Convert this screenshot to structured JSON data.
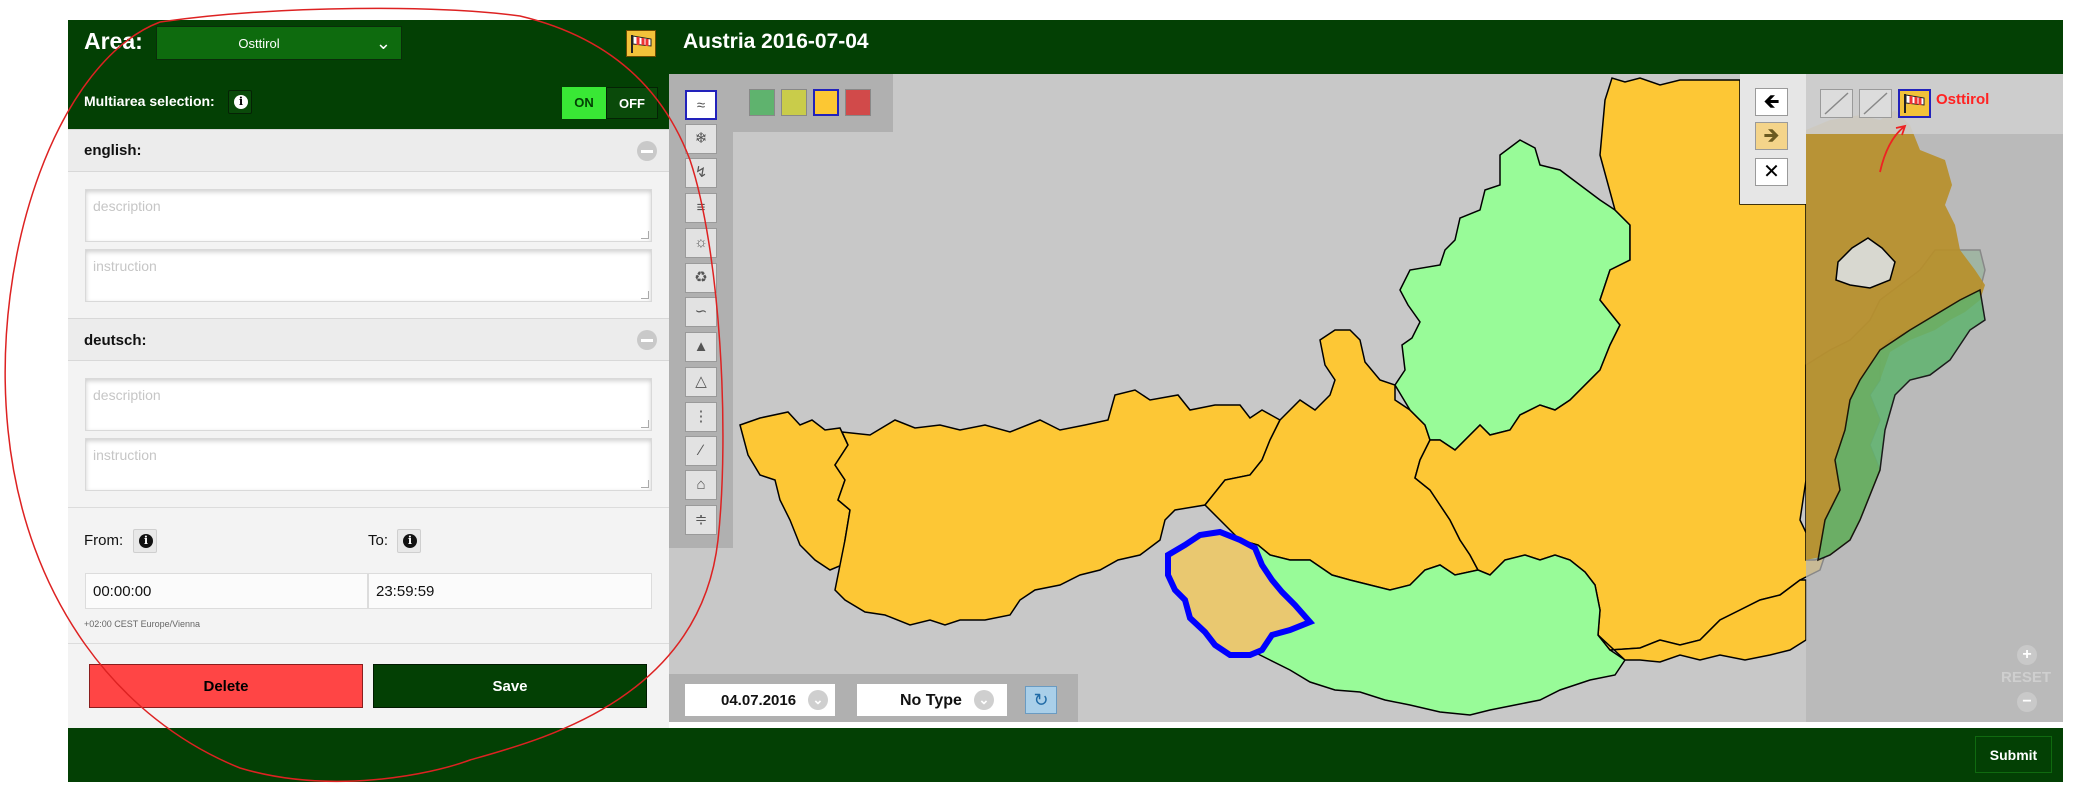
{
  "header": {
    "area_label": "Area:",
    "area_value": "Osttirol",
    "map_title": "Austria 2016-07-04"
  },
  "multiarea": {
    "label": "Multiarea selection:",
    "on_label": "ON",
    "off_label": "OFF",
    "state": "ON"
  },
  "languages": [
    {
      "title": "english:",
      "description_placeholder": "description",
      "instruction_placeholder": "instruction"
    },
    {
      "title": "deutsch:",
      "description_placeholder": "description",
      "instruction_placeholder": "instruction"
    }
  ],
  "time": {
    "from_label": "From:",
    "to_label": "To:",
    "from_value": "00:00:00",
    "to_value": "23:59:59",
    "timezone": "+02:00 CEST Europe/Vienna"
  },
  "actions": {
    "delete_label": "Delete",
    "save_label": "Save",
    "submit_label": "Submit"
  },
  "map": {
    "date_value": "04.07.2016",
    "type_value": "No Type",
    "selected_area_label": "Osttirol",
    "zoom_reset_label": "RESET",
    "warning_colors": [
      "#5fb36e",
      "#c9cc4a",
      "#fcc733",
      "#d14a4a"
    ],
    "selected_color_index": 2,
    "tools": [
      "wind-icon",
      "snow-ice-icon",
      "thunderstorm-icon",
      "fog-icon",
      "high-temperature-icon",
      "low-temperature-icon",
      "coastal-event-icon",
      "forest-fire-icon",
      "avalanche-icon",
      "rain-icon",
      "flood-icon",
      "rain-flood-icon",
      "landslide-icon"
    ]
  }
}
